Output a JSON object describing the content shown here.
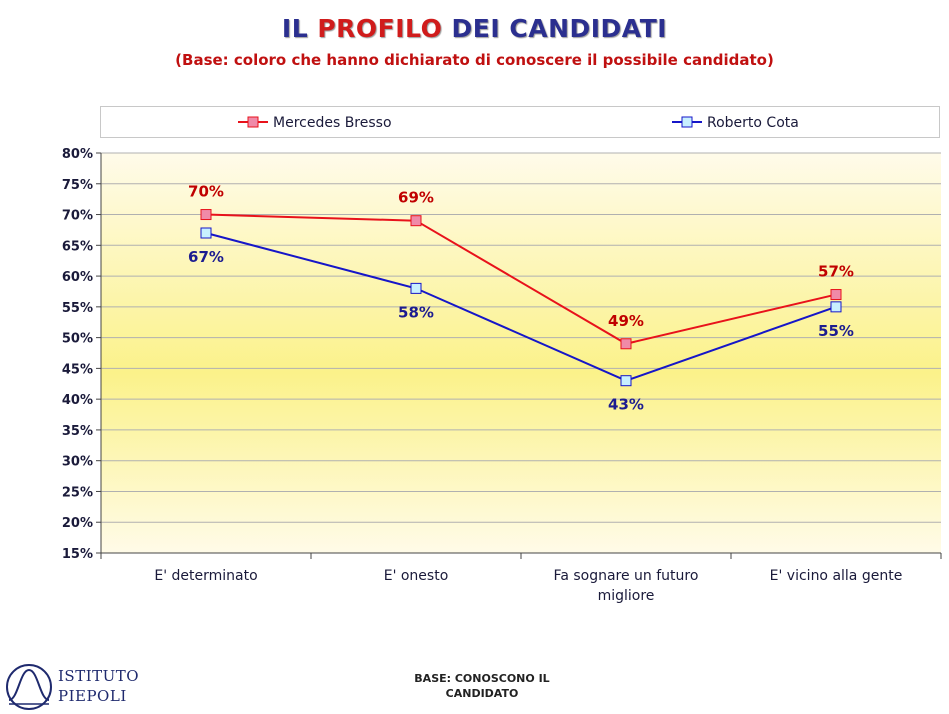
{
  "header": {
    "title_part1": "IL ",
    "title_highlight": "PROFILO",
    "title_part2": " DEI CANDIDATI",
    "subtitle": "(Base: coloro che hanno dichiarato di conoscere il possibile candidato)"
  },
  "chart_data": {
    "type": "line",
    "categories": [
      "E' determinato",
      "E' onesto",
      "Fa sognare un futuro migliore",
      "E' vicino alla gente"
    ],
    "series": [
      {
        "name": "Mercedes Bresso",
        "values": [
          70,
          69,
          49,
          57
        ],
        "labels": [
          "70%",
          "69%",
          "49%",
          "57%"
        ],
        "color": "#e8121b",
        "marker_fill": "#f08aa8",
        "label_color": "#c00000",
        "label_position": "above"
      },
      {
        "name": "Roberto Cota",
        "values": [
          67,
          58,
          43,
          55
        ],
        "labels": [
          "67%",
          "58%",
          "43%",
          "55%"
        ],
        "color": "#1616c8",
        "marker_fill": "#c8f0ff",
        "label_color": "#1c1c90",
        "label_position": "below"
      }
    ],
    "ylim": [
      15,
      80
    ],
    "yticks": [
      "15%",
      "20%",
      "25%",
      "30%",
      "35%",
      "40%",
      "45%",
      "50%",
      "55%",
      "60%",
      "65%",
      "70%",
      "75%",
      "80%"
    ],
    "grid": true,
    "legend_position": "top",
    "background": "yellow-gradient"
  },
  "footer": {
    "base_note": "BASE: CONOSCONO IL CANDIDATO",
    "logo_line1": "ISTITUTO",
    "logo_line2": "PIEPOLI"
  }
}
